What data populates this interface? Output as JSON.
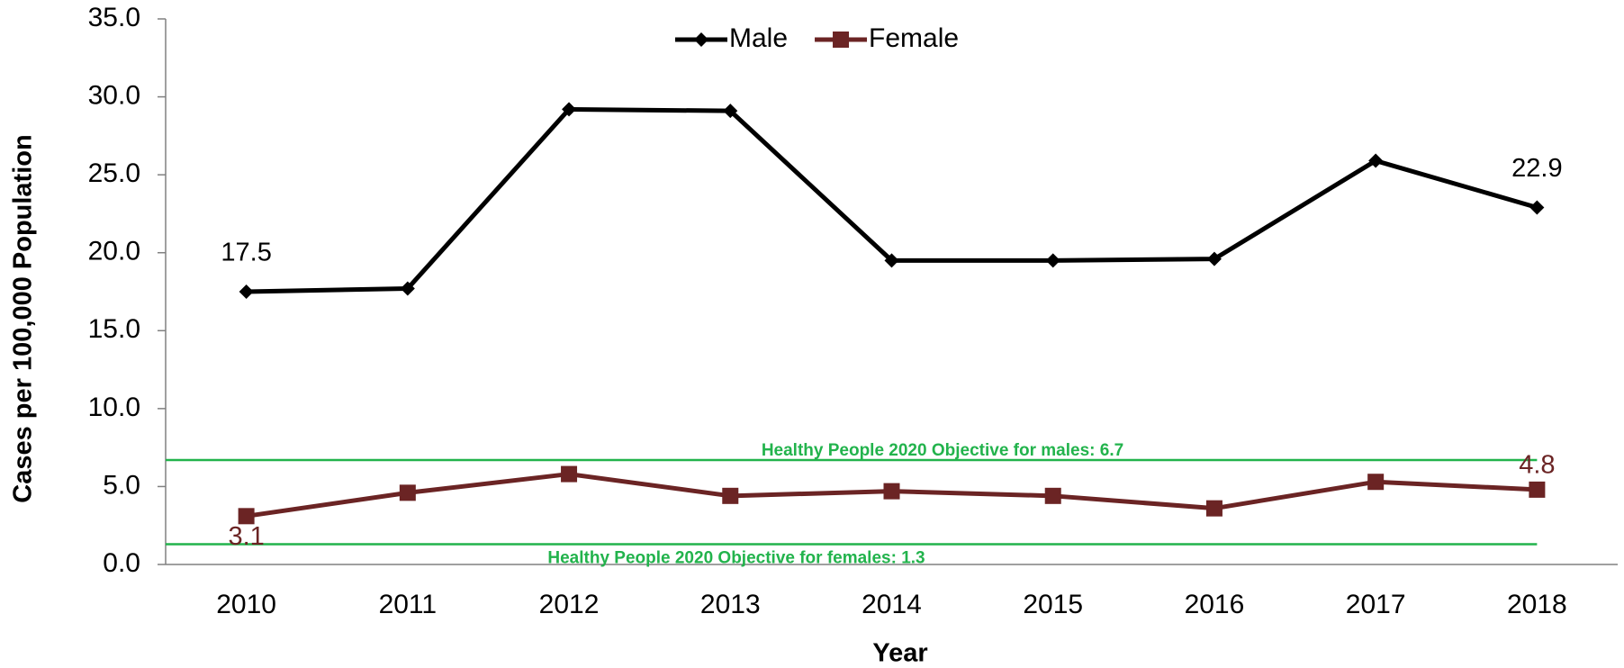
{
  "chart_data": {
    "type": "line",
    "x_label": "Year",
    "y_label": "Cases per 100,000 Population",
    "categories": [
      "2010",
      "2011",
      "2012",
      "2013",
      "2014",
      "2015",
      "2016",
      "2017",
      "2018"
    ],
    "series": [
      {
        "name": "Male",
        "color": "#000000",
        "marker": "diamond",
        "values": [
          17.5,
          17.7,
          29.2,
          29.1,
          19.5,
          19.5,
          19.6,
          25.9,
          22.9
        ],
        "value_labels": [
          "17.5",
          null,
          null,
          null,
          null,
          null,
          null,
          null,
          "22.9"
        ]
      },
      {
        "name": "Female",
        "color": "#6b2424",
        "marker": "square",
        "values": [
          3.1,
          4.6,
          5.8,
          4.4,
          4.7,
          4.4,
          3.6,
          5.3,
          4.8
        ],
        "value_labels": [
          "3.1",
          null,
          null,
          null,
          null,
          null,
          null,
          null,
          "4.8"
        ]
      }
    ],
    "reference_lines": [
      {
        "label": "Healthy People 2020 Objective for males: 6.7",
        "value": 6.7,
        "color": "#22b34c"
      },
      {
        "label": "Healthy People 2020 Objective for females: 1.3",
        "value": 1.3,
        "color": "#22b34c"
      }
    ],
    "ylim": [
      0,
      35
    ],
    "yticks": [
      {
        "value": 0,
        "label": "0.0"
      },
      {
        "value": 5,
        "label": "5.0"
      },
      {
        "value": 10,
        "label": "10.0"
      },
      {
        "value": 15,
        "label": "15.0"
      },
      {
        "value": 20,
        "label": "20.0"
      },
      {
        "value": 25,
        "label": "25.0"
      },
      {
        "value": 30,
        "label": "30.0"
      },
      {
        "value": 35,
        "label": "35.0"
      }
    ],
    "legend": "top",
    "grid": false
  }
}
